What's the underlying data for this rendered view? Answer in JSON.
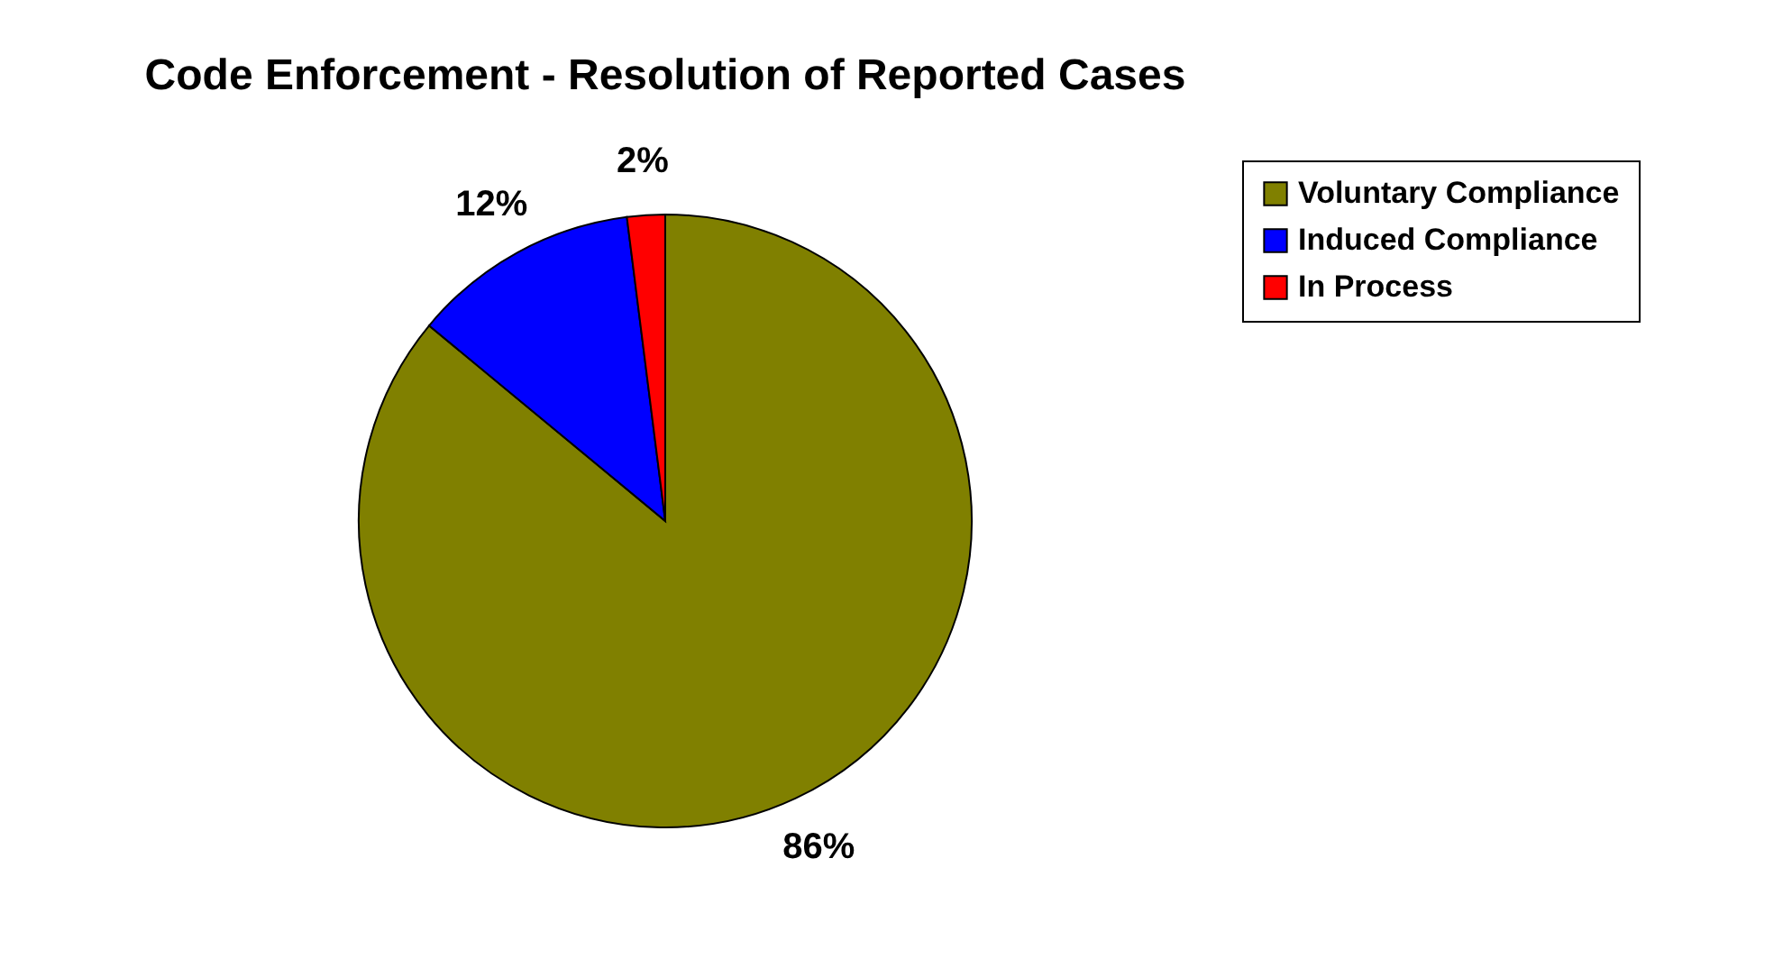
{
  "chart_data": {
    "type": "pie",
    "title": "Code Enforcement - Resolution of Reported Cases",
    "categories": [
      "Voluntary Compliance",
      "Induced Compliance",
      "In Process"
    ],
    "values": [
      86,
      12,
      2
    ],
    "colors": [
      "#808000",
      "#0000ff",
      "#ff0000"
    ],
    "value_labels": [
      "86%",
      "12%",
      "2%"
    ],
    "legend": "right"
  }
}
